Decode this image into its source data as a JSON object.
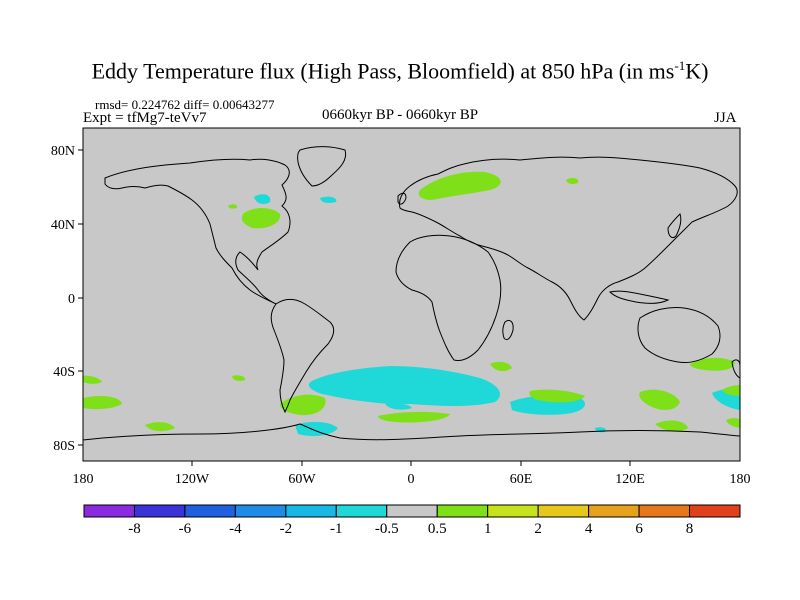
{
  "title": "Eddy Temperature flux (High Pass, Bloomfield) at 850 hPa (in ms",
  "title_sup": "-1",
  "title_end": "K)",
  "stats_line": "rmsd= 0.224762 diff= 0.00643277",
  "experiment": "Expt = tfMg7-teVv7",
  "period": "0660kyr BP - 0660kyr BP",
  "season": "JJA",
  "axes": {
    "x_ticks": [
      "180",
      "120W",
      "60W",
      "0",
      "60E",
      "120E",
      "180"
    ],
    "y_ticks": [
      "80N",
      "40N",
      "0",
      "40S",
      "80S"
    ]
  },
  "colorbar": {
    "labels": [
      "-8",
      "-6",
      "-4",
      "-2",
      "-1",
      "-0.5",
      "0.5",
      "1",
      "2",
      "4",
      "6",
      "8"
    ],
    "colors": [
      "#8a2be2",
      "#3a34d8",
      "#1f5fe0",
      "#1e8be6",
      "#18b8e6",
      "#1fd8d8",
      "#c8c8c8",
      "#7fe01a",
      "#c6e21a",
      "#e6c81a",
      "#e6a21a",
      "#e6781a",
      "#e0401a"
    ]
  },
  "colors": {
    "land_background": "#c8c8c8",
    "cyan": "#1fd8d8",
    "green": "#7fe01a"
  }
}
